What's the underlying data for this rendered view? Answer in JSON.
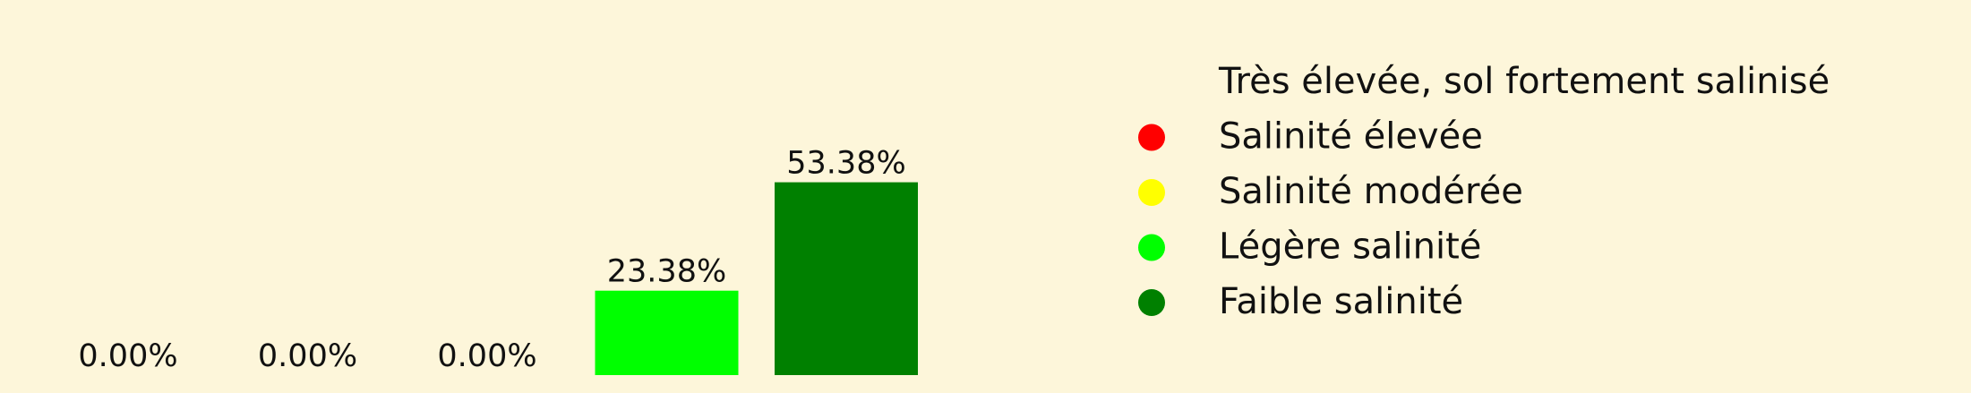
{
  "chart_data": {
    "type": "bar",
    "categories": [
      "Très élevée, sol fortement salinisé",
      "Salinité élevée",
      "Salinité modérée",
      "Légère salinité",
      "Faible salinité"
    ],
    "values": [
      0.0,
      0.0,
      0.0,
      23.38,
      53.38
    ],
    "value_labels": [
      "0.00%",
      "0.00%",
      "0.00%",
      "23.38%",
      "53.38%"
    ],
    "colors": [
      "#fdf6da",
      "#ff0000",
      "#ffff00",
      "#00ff00",
      "#008000"
    ],
    "unit": "%",
    "ylim": [
      0,
      60
    ],
    "grid": false,
    "legend_placement": "right",
    "legend": [
      {
        "label": "Très élevée, sol fortement salinisé",
        "color": "#fdf6da"
      },
      {
        "label": "Salinité élevée",
        "color": "#ff0000"
      },
      {
        "label": "Salinité modérée",
        "color": "#ffff00"
      },
      {
        "label": "Légère salinité",
        "color": "#00ff00"
      },
      {
        "label": "Faible salinité",
        "color": "#008000"
      }
    ]
  }
}
